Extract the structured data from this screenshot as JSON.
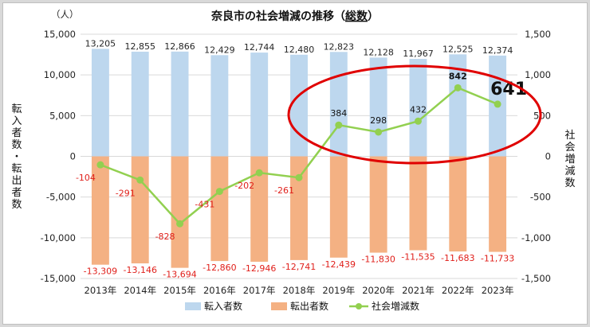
{
  "chart_data": {
    "type": "bar",
    "title": "奈良市の社会増減の推移（",
    "title_emphasis": "総数",
    "title_close": "）",
    "unit": "（人）",
    "ylabel": "転入者数・転出者数",
    "y2label": "社会増減数",
    "ylim": [
      -15000,
      15000
    ],
    "y2lim": [
      -1500,
      1500
    ],
    "yticks": [
      "15,000",
      "10,000",
      "5,000",
      "0",
      "-5,000",
      "-10,000",
      "-15,000"
    ],
    "y2ticks": [
      "1,500",
      "1,000",
      "500",
      "0",
      "-500",
      "-1,000",
      "-1,500"
    ],
    "categories": [
      "2013年",
      "2014年",
      "2015年",
      "2016年",
      "2017年",
      "2018年",
      "2019年",
      "2020年",
      "2021年",
      "2022年",
      "2023年"
    ],
    "series": [
      {
        "name": "転入者数",
        "kind": "bar",
        "color": "#bdd7ee",
        "values": [
          13205,
          12855,
          12866,
          12429,
          12744,
          12480,
          12823,
          12128,
          11967,
          12525,
          12374
        ],
        "labels": [
          "13,205",
          "12,855",
          "12,866",
          "12,429",
          "12,744",
          "12,480",
          "12,823",
          "12,128",
          "11,967",
          "12,525",
          "12,374"
        ]
      },
      {
        "name": "転出者数",
        "kind": "bar",
        "color": "#f4b183",
        "values": [
          -13309,
          -13146,
          -13694,
          -12860,
          -12946,
          -12741,
          -12439,
          -11830,
          -11535,
          -11683,
          -11733
        ],
        "labels": [
          "-13,309",
          "-13,146",
          "-13,694",
          "-12,860",
          "-12,946",
          "-12,741",
          "-12,439",
          "-11,830",
          "-11,535",
          "-11,683",
          "-11,733"
        ]
      },
      {
        "name": "社会増減数",
        "kind": "line",
        "axis": "right",
        "color": "#92d050",
        "values": [
          -104,
          -291,
          -828,
          -431,
          -202,
          -261,
          384,
          298,
          432,
          842,
          641
        ],
        "labels": [
          "-104",
          "-291",
          "-828",
          "-431",
          "-202",
          "-261",
          "384",
          "298",
          "432",
          "842",
          "641"
        ]
      }
    ],
    "annotation": {
      "shape": "ellipse",
      "color": "#e00000",
      "highlight": "2019年–2023年"
    },
    "legend": "bottom",
    "grid": true
  }
}
